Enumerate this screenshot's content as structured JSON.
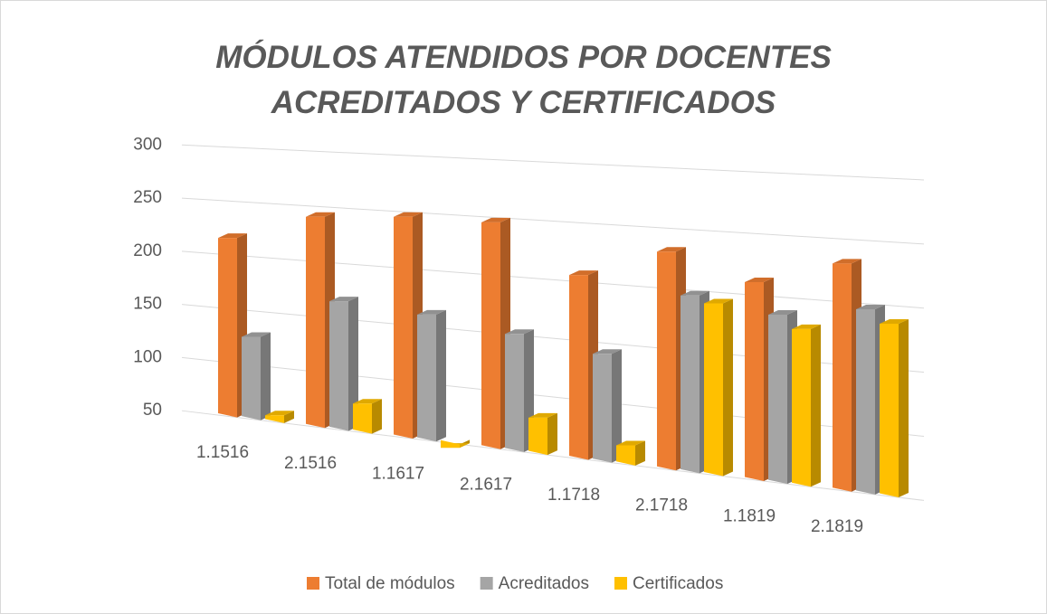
{
  "chart_data": {
    "type": "bar3d",
    "title": "MÓDULOS ATENDIDOS POR DOCENTES ACREDITADOS Y CERTIFICADOS",
    "categories": [
      "1.1516",
      "2.1516",
      "1.1617",
      "2.1617",
      "1.1718",
      "2.1718",
      "1.1819",
      "2.1819"
    ],
    "series": [
      {
        "name": "Total de módulos",
        "color": "#ED7D31",
        "values": [
          215,
          240,
          245,
          245,
          205,
          230,
          210,
          230
        ]
      },
      {
        "name": "Acreditados",
        "color": "#A5A5A5",
        "values": [
          125,
          165,
          160,
          150,
          140,
          195,
          185,
          195
        ]
      },
      {
        "name": "Certificados",
        "color": "#FFC000",
        "values": [
          55,
          75,
          45,
          80,
          65,
          190,
          175,
          185
        ]
      }
    ],
    "ylim": [
      50,
      300
    ],
    "yticks": [
      50,
      100,
      150,
      200,
      250,
      300
    ],
    "grid": true,
    "legend": "bottom"
  }
}
